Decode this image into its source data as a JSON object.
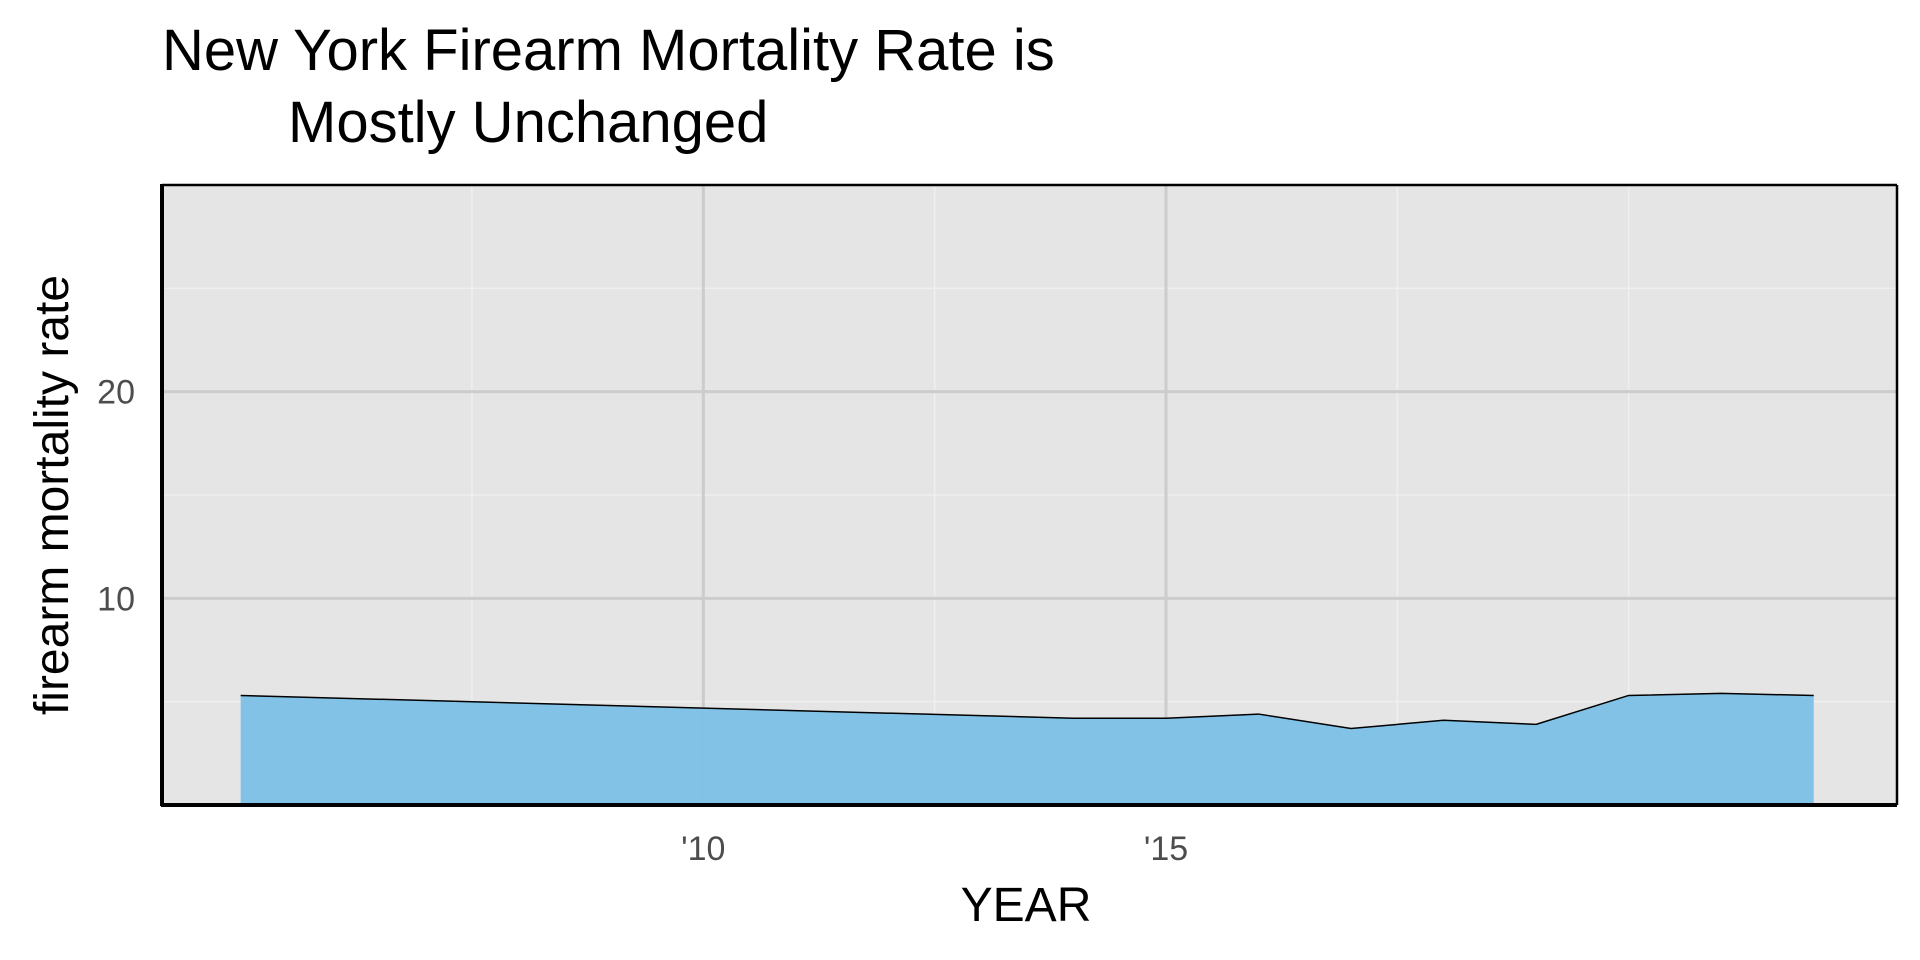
{
  "chart_data": {
    "type": "area",
    "title_lines": [
      "New York Firearm Mortality Rate is",
      "Mostly Unchanged"
    ],
    "xlabel": "YEAR",
    "ylabel": "firearm mortality rate",
    "x": [
      2005,
      2014,
      2015,
      2016,
      2017,
      2018,
      2019,
      2020,
      2021,
      2022
    ],
    "values": [
      5.3,
      4.2,
      4.2,
      4.4,
      3.7,
      4.1,
      3.9,
      5.3,
      5.4,
      5.3
    ],
    "xlim": [
      2004.15,
      2022.9
    ],
    "ylim": [
      0,
      30
    ],
    "x_ticks": [
      {
        "value": 2010,
        "label": "'10"
      },
      {
        "value": 2015,
        "label": "'15"
      }
    ],
    "x_minor_ticks": [
      2007.5,
      2012.5,
      2017.5,
      2020
    ],
    "y_ticks": [
      {
        "value": 10,
        "label": "10"
      },
      {
        "value": 20,
        "label": "20"
      }
    ],
    "y_minor_ticks": [
      5,
      15,
      25
    ],
    "grid": true,
    "colors": {
      "fill": "#7fc1e7",
      "outline": "#000000",
      "panel": "#e5e5e5",
      "major_grid": "#cccccc",
      "minor_grid": "#efefef"
    }
  }
}
